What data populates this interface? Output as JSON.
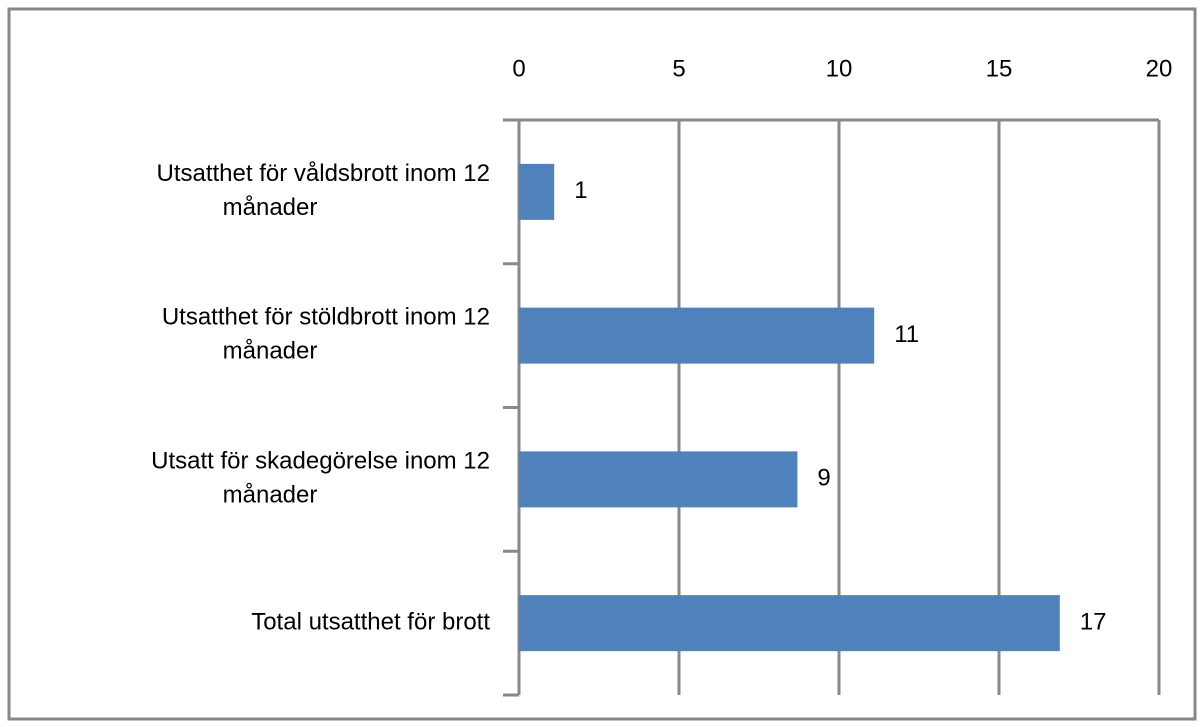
{
  "chart_data": {
    "type": "hbar",
    "categories": [
      "Utsatthet för våldsbrott inom 12 månader",
      "Utsatthet för stöldbrott inom 12 månader",
      "Utsatt för skadegörelse inom 12 månader",
      "Total utsatthet för brott"
    ],
    "values": [
      1.1,
      11.1,
      8.7,
      16.9
    ],
    "value_labels": [
      "1",
      "11",
      "9",
      "17"
    ],
    "color": "#4f81bd",
    "xlim": [
      0,
      20
    ],
    "xticks": [
      0,
      5,
      10,
      15,
      20
    ],
    "grid": true
  }
}
